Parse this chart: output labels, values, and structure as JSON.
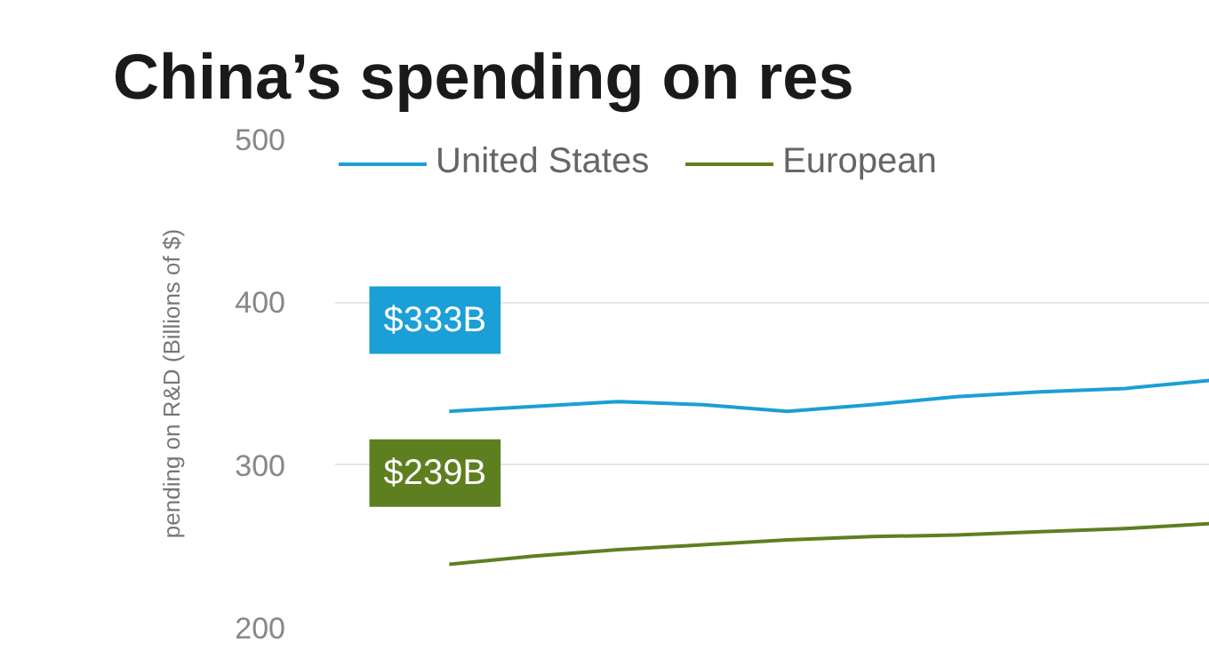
{
  "chart_data": {
    "type": "line",
    "title": "China’s spending on res",
    "ylabel": "pending on R&D (Billions of $)",
    "categories": [
      null,
      null,
      null,
      null,
      null,
      null,
      null,
      null,
      null,
      null
    ],
    "series": [
      {
        "name": "United States",
        "color": "#1a9fd6",
        "values": [
          333,
          336,
          339,
          337,
          333,
          337,
          342,
          345,
          347,
          352
        ]
      },
      {
        "name": "European",
        "color": "#5e7f1f",
        "values": [
          239,
          244,
          248,
          251,
          254,
          256,
          257,
          259,
          261,
          264
        ]
      }
    ],
    "annotations": [
      "$333B",
      "$239B"
    ],
    "ylim": [
      200,
      500
    ],
    "yticks": [
      200,
      300,
      400,
      500
    ],
    "grid": "y",
    "legend": "top left",
    "marker": "none",
    "line_style": "solid"
  }
}
